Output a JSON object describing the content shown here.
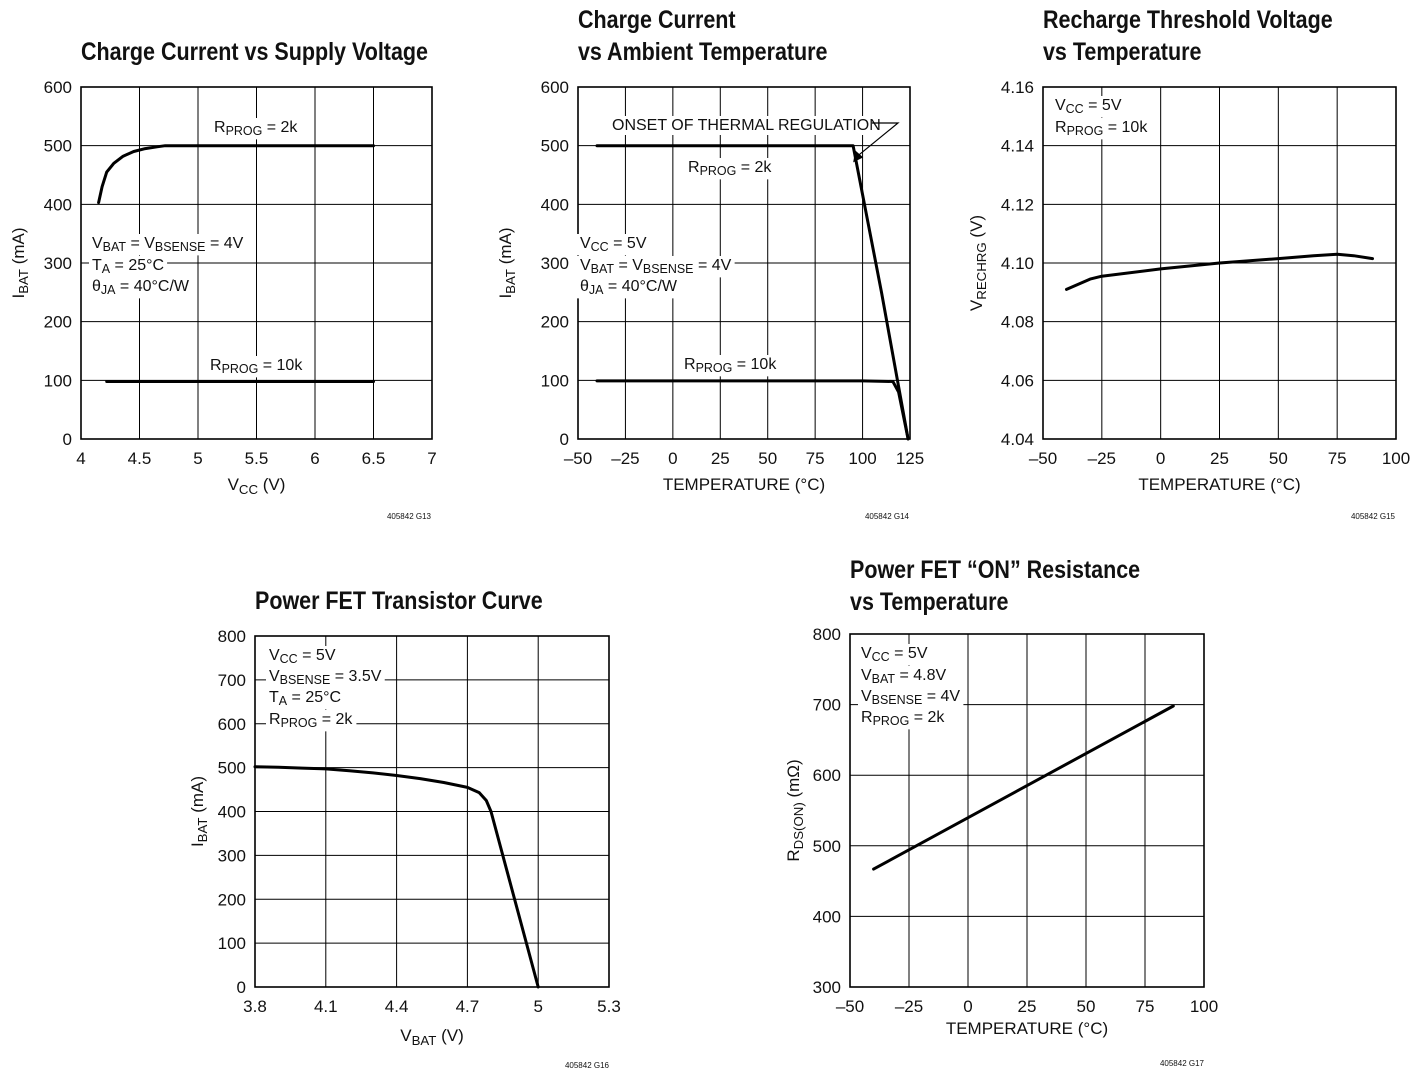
{
  "chart_data": [
    {
      "id": "g13",
      "type": "line",
      "title": [
        "Charge Current vs Supply Voltage"
      ],
      "xlabel": [
        [
          "V"
        ],
        [
          "CC",
          "sub"
        ],
        [
          " (V)"
        ]
      ],
      "ylabel": [
        [
          "I"
        ],
        [
          "BAT",
          "sub"
        ],
        [
          " (mA)"
        ]
      ],
      "xlim": [
        4,
        7
      ],
      "ylim": [
        0,
        600
      ],
      "xticks": [
        "4",
        "4.5",
        "5",
        "5.5",
        "6",
        "6.5",
        "7"
      ],
      "xtick_values": [
        4,
        4.5,
        5,
        5.5,
        6,
        6.5,
        7
      ],
      "yticks": [
        "0",
        "100",
        "200",
        "300",
        "400",
        "500",
        "600"
      ],
      "ytick_values": [
        0,
        100,
        200,
        300,
        400,
        500,
        600
      ],
      "grid": true,
      "series": [
        {
          "x": [
            4.15,
            4.18,
            4.22,
            4.28,
            4.36,
            4.45,
            4.55,
            4.65,
            4.72,
            5.0,
            5.5,
            6.0,
            6.5
          ],
          "y": [
            403,
            430,
            455,
            470,
            482,
            490,
            495,
            498,
            500,
            500,
            500,
            500,
            500
          ]
        },
        {
          "x": [
            4.22,
            4.5,
            5.0,
            5.5,
            6.0,
            6.5
          ],
          "y": [
            98,
            98,
            98,
            98,
            98,
            98
          ]
        }
      ],
      "annotations": [
        {
          "segments": [
            [
              "R"
            ],
            [
              "PROG",
              "sub"
            ],
            [
              " = 2k"
            ]
          ]
        },
        {
          "segments": [
            [
              "R"
            ],
            [
              "PROG",
              "sub"
            ],
            [
              " = 10k"
            ]
          ]
        },
        {
          "segments": [
            [
              "V"
            ],
            [
              "BAT",
              "sub"
            ],
            [
              " = V"
            ],
            [
              "BSENSE",
              "sub"
            ],
            [
              " = 4V"
            ]
          ]
        },
        {
          "segments": [
            [
              "T"
            ],
            [
              "A",
              "sub"
            ],
            [
              " = 25°C"
            ]
          ]
        },
        {
          "segments": [
            [
              "θ"
            ],
            [
              "JA",
              "sub"
            ],
            [
              " = 40°C/W"
            ]
          ]
        }
      ],
      "figure_id": "405842 G13"
    },
    {
      "id": "g14",
      "type": "line",
      "title": [
        "Charge Current",
        "vs Ambient Temperature"
      ],
      "xlabel": [
        [
          "TEMPERATURE (°C)"
        ]
      ],
      "ylabel": [
        [
          "I"
        ],
        [
          "BAT",
          "sub"
        ],
        [
          " (mA)"
        ]
      ],
      "xlim": [
        -50,
        125
      ],
      "ylim": [
        0,
        600
      ],
      "xticks": [
        "–50",
        "–25",
        "0",
        "25",
        "50",
        "75",
        "100",
        "125"
      ],
      "xtick_values": [
        -50,
        -25,
        0,
        25,
        50,
        75,
        100,
        125
      ],
      "yticks": [
        "0",
        "100",
        "200",
        "300",
        "400",
        "500",
        "600"
      ],
      "ytick_values": [
        0,
        100,
        200,
        300,
        400,
        500,
        600
      ],
      "grid": true,
      "series": [
        {
          "x": [
            -40,
            0,
            50,
            95,
            110,
            124
          ],
          "y": [
            500,
            500,
            500,
            500,
            250,
            0
          ]
        },
        {
          "x": [
            -40,
            0,
            50,
            100,
            116,
            119,
            124
          ],
          "y": [
            99,
            99,
            99,
            99,
            98,
            80,
            0
          ]
        }
      ],
      "annotations": [
        {
          "segments": [
            [
              "ONSET OF THERMAL REGULATION"
            ]
          ]
        },
        {
          "segments": [
            [
              "R"
            ],
            [
              "PROG",
              "sub"
            ],
            [
              " = 2k"
            ]
          ]
        },
        {
          "segments": [
            [
              "R"
            ],
            [
              "PROG",
              "sub"
            ],
            [
              " = 10k"
            ]
          ]
        },
        {
          "segments": [
            [
              "V"
            ],
            [
              "CC",
              "sub"
            ],
            [
              " = 5V"
            ]
          ]
        },
        {
          "segments": [
            [
              "V"
            ],
            [
              "BAT",
              "sub"
            ],
            [
              " = V"
            ],
            [
              "BSENSE",
              "sub"
            ],
            [
              " = 4V"
            ]
          ]
        },
        {
          "segments": [
            [
              "θ"
            ],
            [
              "JA",
              "sub"
            ],
            [
              " = 40°C/W"
            ]
          ]
        }
      ],
      "figure_id": "405842 G14"
    },
    {
      "id": "g15",
      "type": "line",
      "title": [
        "Recharge Threshold Voltage",
        "vs Temperature"
      ],
      "xlabel": [
        [
          "TEMPERATURE (°C)"
        ]
      ],
      "ylabel": [
        [
          "V"
        ],
        [
          "RECHRG",
          "sub"
        ],
        [
          " (V)"
        ]
      ],
      "xlim": [
        -50,
        100
      ],
      "ylim": [
        4.04,
        4.16
      ],
      "xticks": [
        "–50",
        "–25",
        "0",
        "25",
        "50",
        "75",
        "100"
      ],
      "xtick_values": [
        -50,
        -25,
        0,
        25,
        50,
        75,
        100
      ],
      "yticks": [
        "4.04",
        "4.06",
        "4.08",
        "4.10",
        "4.12",
        "4.14",
        "4.16"
      ],
      "ytick_values": [
        4.04,
        4.06,
        4.08,
        4.1,
        4.12,
        4.14,
        4.16
      ],
      "grid": true,
      "series": [
        {
          "x": [
            -40,
            -30,
            -25,
            0,
            25,
            50,
            65,
            75,
            82,
            90
          ],
          "y": [
            4.091,
            4.0945,
            4.0955,
            4.098,
            4.1,
            4.1015,
            4.1025,
            4.103,
            4.1025,
            4.1015
          ]
        }
      ],
      "annotations": [
        {
          "segments": [
            [
              "V"
            ],
            [
              "CC",
              "sub"
            ],
            [
              " = 5V"
            ]
          ]
        },
        {
          "segments": [
            [
              "R"
            ],
            [
              "PROG",
              "sub"
            ],
            [
              " = 10k"
            ]
          ]
        }
      ],
      "figure_id": "405842 G15"
    },
    {
      "id": "g16",
      "type": "line",
      "title": [
        "Power FET Transistor Curve"
      ],
      "xlabel": [
        [
          "V"
        ],
        [
          "BAT",
          "sub"
        ],
        [
          " (V)"
        ]
      ],
      "ylabel": [
        [
          "I"
        ],
        [
          "BAT",
          "sub"
        ],
        [
          " (mA)"
        ]
      ],
      "xlim": [
        3.8,
        5.3
      ],
      "ylim": [
        0,
        800
      ],
      "xticks": [
        "3.8",
        "4.1",
        "4.4",
        "4.7",
        "5",
        "5.3"
      ],
      "xtick_values": [
        3.8,
        4.1,
        4.4,
        4.7,
        5.0,
        5.3
      ],
      "yticks": [
        "0",
        "100",
        "200",
        "300",
        "400",
        "500",
        "600",
        "700",
        "800"
      ],
      "ytick_values": [
        0,
        100,
        200,
        300,
        400,
        500,
        600,
        700,
        800
      ],
      "grid": true,
      "series": [
        {
          "x": [
            3.8,
            3.9,
            4.0,
            4.1,
            4.2,
            4.3,
            4.4,
            4.5,
            4.6,
            4.7,
            4.75,
            4.78,
            4.8,
            5.0
          ],
          "y": [
            502,
            501,
            499,
            497,
            493,
            488,
            482,
            475,
            466,
            455,
            443,
            425,
            400,
            0
          ]
        }
      ],
      "annotations": [
        {
          "segments": [
            [
              "V"
            ],
            [
              "CC",
              "sub"
            ],
            [
              " = 5V"
            ]
          ]
        },
        {
          "segments": [
            [
              "V"
            ],
            [
              "BSENSE",
              "sub"
            ],
            [
              " = 3.5V"
            ]
          ]
        },
        {
          "segments": [
            [
              "T"
            ],
            [
              "A",
              "sub"
            ],
            [
              " = 25°C"
            ]
          ]
        },
        {
          "segments": [
            [
              "R"
            ],
            [
              "PROG",
              "sub"
            ],
            [
              " = 2k"
            ]
          ]
        }
      ],
      "figure_id": "405842 G16"
    },
    {
      "id": "g17",
      "type": "line",
      "title": [
        "Power FET “ON” Resistance",
        "vs Temperature"
      ],
      "xlabel": [
        [
          "TEMPERATURE (°C)"
        ]
      ],
      "ylabel": [
        [
          "R"
        ],
        [
          "DS(ON)",
          "sub"
        ],
        [
          " (mΩ)"
        ]
      ],
      "xlim": [
        -50,
        100
      ],
      "ylim": [
        300,
        800
      ],
      "xticks": [
        "–50",
        "–25",
        "0",
        "25",
        "50",
        "75",
        "100"
      ],
      "xtick_values": [
        -50,
        -25,
        0,
        25,
        50,
        75,
        100
      ],
      "yticks": [
        "300",
        "400",
        "500",
        "600",
        "700",
        "800"
      ],
      "ytick_values": [
        300,
        400,
        500,
        600,
        700,
        800
      ],
      "grid": true,
      "series": [
        {
          "x": [
            -40,
            87
          ],
          "y": [
            467,
            698
          ]
        }
      ],
      "annotations": [
        {
          "segments": [
            [
              "V"
            ],
            [
              "CC",
              "sub"
            ],
            [
              " = 5V"
            ]
          ]
        },
        {
          "segments": [
            [
              "V"
            ],
            [
              "BAT",
              "sub"
            ],
            [
              " = 4.8V"
            ]
          ]
        },
        {
          "segments": [
            [
              "V"
            ],
            [
              "BSENSE",
              "sub"
            ],
            [
              " = 4V"
            ]
          ]
        },
        {
          "segments": [
            [
              "R"
            ],
            [
              "PROG",
              "sub"
            ],
            [
              " = 2k"
            ]
          ]
        }
      ],
      "figure_id": "405842 G17"
    }
  ]
}
